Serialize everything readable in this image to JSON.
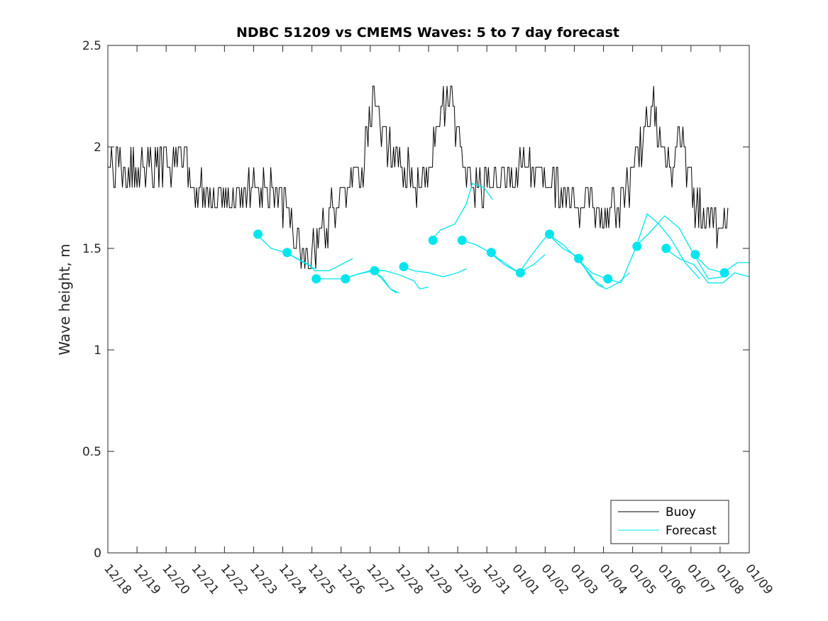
{
  "chart_data": {
    "type": "line",
    "title": "NDBC 51209 vs CMEMS Waves: 5 to 7 day forecast",
    "xlabel": "",
    "ylabel": "Wave height, m",
    "xlim": [
      0,
      22
    ],
    "ylim": [
      0,
      2.5
    ],
    "grid": false,
    "legend_position": "bottom-right",
    "x_tick_values": [
      0,
      1,
      2,
      3,
      4,
      5,
      6,
      7,
      8,
      9,
      10,
      11,
      12,
      13,
      14,
      15,
      16,
      17,
      18,
      19,
      20,
      21,
      22
    ],
    "x_tick_labels": [
      "12/18",
      "12/19",
      "12/20",
      "12/21",
      "12/22",
      "12/23",
      "12/24",
      "12/25",
      "12/26",
      "12/27",
      "12/28",
      "12/29",
      "12/30",
      "12/31",
      "01/01",
      "01/02",
      "01/03",
      "01/04",
      "01/05",
      "01/06",
      "01/07",
      "01/08",
      "01/09"
    ],
    "y_tick_values": [
      0,
      0.5,
      1,
      1.5,
      2,
      2.5
    ],
    "y_tick_labels": [
      "0",
      "0.5",
      "1",
      "1.5",
      "2",
      "2.5"
    ],
    "series": [
      {
        "name": "Buoy",
        "color": "#000000",
        "x_start": 0,
        "x_step": 0.0417,
        "base_curve": [
          [
            0,
            1.9
          ],
          [
            0.5,
            1.88
          ],
          [
            1,
            1.88
          ],
          [
            1.5,
            1.9
          ],
          [
            2,
            1.92
          ],
          [
            2.5,
            1.95
          ],
          [
            3,
            1.8
          ],
          [
            3.5,
            1.75
          ],
          [
            4,
            1.7
          ],
          [
            4.5,
            1.72
          ],
          [
            5,
            1.8
          ],
          [
            5.5,
            1.82
          ],
          [
            6,
            1.75
          ],
          [
            6.3,
            1.62
          ],
          [
            6.6,
            1.5
          ],
          [
            6.9,
            1.45
          ],
          [
            7.2,
            1.5
          ],
          [
            7.6,
            1.65
          ],
          [
            8,
            1.75
          ],
          [
            8.4,
            1.85
          ],
          [
            8.8,
            1.92
          ],
          [
            9,
            2.15
          ],
          [
            9.2,
            2.2
          ],
          [
            9.4,
            2.05
          ],
          [
            9.8,
            1.95
          ],
          [
            10.2,
            1.9
          ],
          [
            10.6,
            1.78
          ],
          [
            11,
            1.9
          ],
          [
            11.4,
            2.1
          ],
          [
            11.7,
            2.3
          ],
          [
            12,
            2.05
          ],
          [
            12.3,
            1.88
          ],
          [
            12.8,
            1.8
          ],
          [
            13.3,
            1.85
          ],
          [
            13.8,
            1.85
          ],
          [
            14.3,
            1.9
          ],
          [
            14.8,
            1.85
          ],
          [
            15.2,
            1.82
          ],
          [
            15.6,
            1.75
          ],
          [
            16,
            1.72
          ],
          [
            16.4,
            1.75
          ],
          [
            16.8,
            1.7
          ],
          [
            17.2,
            1.65
          ],
          [
            17.6,
            1.72
          ],
          [
            18,
            1.85
          ],
          [
            18.4,
            2.05
          ],
          [
            18.7,
            2.2
          ],
          [
            19,
            2.0
          ],
          [
            19.3,
            1.85
          ],
          [
            19.6,
            2.05
          ],
          [
            19.9,
            1.9
          ],
          [
            20.2,
            1.7
          ],
          [
            20.6,
            1.65
          ],
          [
            21,
            1.62
          ],
          [
            21.3,
            1.6
          ]
        ],
        "end_x": 21.3,
        "seed": 51209,
        "noise_step": 0.1,
        "noise_range": [
          -0.1,
          0.1
        ]
      },
      {
        "name": "Forecast",
        "color": "#00e5ee",
        "segments": [
          [
            [
              5.1,
              1.57
            ],
            [
              5.6,
              1.5
            ],
            [
              6.1,
              1.48
            ],
            [
              6.6,
              1.44
            ],
            [
              7.1,
              1.4
            ]
          ],
          [
            [
              6.1,
              1.48
            ],
            [
              6.5,
              1.45
            ],
            [
              6.9,
              1.42
            ],
            [
              7.1,
              1.39
            ],
            [
              7.6,
              1.39
            ],
            [
              8,
              1.42
            ],
            [
              8.4,
              1.45
            ]
          ],
          [
            [
              7.1,
              1.35
            ],
            [
              7.5,
              1.35
            ],
            [
              8.1,
              1.35
            ],
            [
              8.5,
              1.37
            ],
            [
              9,
              1.39
            ],
            [
              9.4,
              1.36
            ],
            [
              9.7,
              1.3
            ],
            [
              9.9,
              1.28
            ]
          ],
          [
            [
              8.1,
              1.35
            ],
            [
              8.5,
              1.37
            ],
            [
              8.8,
              1.38
            ],
            [
              9.1,
              1.39
            ],
            [
              9.4,
              1.35
            ],
            [
              9.7,
              1.3
            ],
            [
              10,
              1.28
            ]
          ],
          [
            [
              9.1,
              1.39
            ],
            [
              9.5,
              1.39
            ],
            [
              10,
              1.37
            ],
            [
              10.5,
              1.34
            ],
            [
              10.7,
              1.3
            ],
            [
              11,
              1.31
            ]
          ],
          [
            [
              10.1,
              1.41
            ],
            [
              10.5,
              1.39
            ],
            [
              11,
              1.38
            ],
            [
              11.5,
              1.36
            ],
            [
              12,
              1.38
            ],
            [
              12.3,
              1.4
            ]
          ],
          [
            [
              11.1,
              1.54
            ],
            [
              11.4,
              1.59
            ],
            [
              11.9,
              1.62
            ],
            [
              12.3,
              1.72
            ],
            [
              12.5,
              1.82
            ],
            [
              12.9,
              1.8
            ],
            [
              13.2,
              1.74
            ]
          ],
          [
            [
              12.1,
              1.54
            ],
            [
              12.6,
              1.52
            ],
            [
              13.1,
              1.48
            ],
            [
              13.6,
              1.42
            ],
            [
              14.1,
              1.38
            ],
            [
              14.6,
              1.42
            ],
            [
              15,
              1.47
            ]
          ],
          [
            [
              13.1,
              1.48
            ],
            [
              13.6,
              1.43
            ],
            [
              14.1,
              1.38
            ],
            [
              14.6,
              1.48
            ],
            [
              15.1,
              1.57
            ],
            [
              15.6,
              1.5
            ],
            [
              16.1,
              1.46
            ],
            [
              16.6,
              1.35
            ],
            [
              17,
              1.31
            ]
          ],
          [
            [
              15.1,
              1.57
            ],
            [
              15.6,
              1.52
            ],
            [
              16.1,
              1.45
            ],
            [
              16.5,
              1.38
            ],
            [
              16.8,
              1.32
            ],
            [
              17.1,
              1.3
            ],
            [
              17.5,
              1.33
            ],
            [
              17.9,
              1.38
            ]
          ],
          [
            [
              16.1,
              1.45
            ],
            [
              16.6,
              1.38
            ],
            [
              17.1,
              1.35
            ],
            [
              17.6,
              1.33
            ],
            [
              18.1,
              1.5
            ],
            [
              18.5,
              1.67
            ],
            [
              18.9,
              1.62
            ],
            [
              19.3,
              1.55
            ],
            [
              19.8,
              1.43
            ],
            [
              20.3,
              1.35
            ]
          ],
          [
            [
              18.1,
              1.51
            ],
            [
              18.6,
              1.58
            ],
            [
              19.1,
              1.66
            ],
            [
              19.6,
              1.6
            ],
            [
              20.1,
              1.47
            ],
            [
              20.6,
              1.35
            ],
            [
              21.1,
              1.36
            ]
          ],
          [
            [
              19.1,
              1.5
            ],
            [
              19.6,
              1.45
            ],
            [
              20.1,
              1.42
            ],
            [
              20.6,
              1.33
            ],
            [
              21.1,
              1.33
            ],
            [
              21.5,
              1.38
            ],
            [
              22,
              1.36
            ]
          ],
          [
            [
              20.1,
              1.47
            ],
            [
              20.6,
              1.4
            ],
            [
              21.1,
              1.38
            ],
            [
              21.6,
              1.43
            ],
            [
              22,
              1.43
            ]
          ]
        ],
        "markers": [
          [
            5.15,
            1.57
          ],
          [
            6.15,
            1.48
          ],
          [
            7.15,
            1.35
          ],
          [
            8.15,
            1.35
          ],
          [
            9.15,
            1.39
          ],
          [
            10.15,
            1.41
          ],
          [
            11.15,
            1.54
          ],
          [
            12.15,
            1.54
          ],
          [
            13.15,
            1.48
          ],
          [
            14.15,
            1.38
          ],
          [
            15.15,
            1.57
          ],
          [
            16.15,
            1.45
          ],
          [
            17.15,
            1.35
          ],
          [
            18.15,
            1.51
          ],
          [
            19.15,
            1.5
          ],
          [
            20.15,
            1.47
          ],
          [
            21.15,
            1.38
          ]
        ]
      }
    ]
  }
}
